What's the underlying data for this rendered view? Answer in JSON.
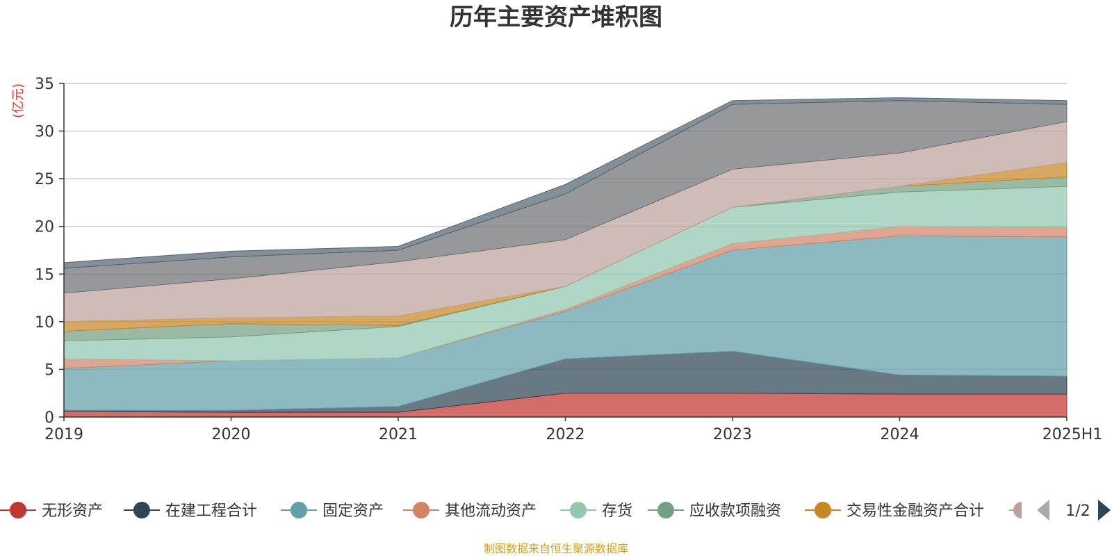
{
  "chart_data": {
    "type": "area",
    "title": "历年主要资产堆积图",
    "ylabel": "(亿元)",
    "xlabel": "",
    "ylim": [
      0,
      35
    ],
    "yticks": [
      0,
      5,
      10,
      15,
      20,
      25,
      30,
      35
    ],
    "grid": true,
    "legend_position": "bottom",
    "categories": [
      "2019",
      "2020",
      "2021",
      "2022",
      "2023",
      "2024",
      "2025H1"
    ],
    "series": [
      {
        "name": "无形资产",
        "color": "#c23531",
        "values": [
          0.6,
          0.5,
          0.5,
          2.5,
          2.5,
          2.4,
          2.4
        ]
      },
      {
        "name": "在建工程合计",
        "color": "#2f4554",
        "values": [
          0.1,
          0.2,
          0.6,
          3.6,
          4.4,
          2.0,
          1.9
        ]
      },
      {
        "name": "固定资产",
        "color": "#61a0a8",
        "values": [
          4.4,
          5.2,
          5.1,
          5.0,
          10.6,
          14.6,
          14.6
        ]
      },
      {
        "name": "其他流动资产",
        "color": "#d48265",
        "values": [
          1.0,
          0.0,
          0.0,
          0.2,
          0.7,
          1.0,
          1.0
        ]
      },
      {
        "name": "存货",
        "color": "#91c7ae",
        "values": [
          1.9,
          2.5,
          3.3,
          2.4,
          3.8,
          3.6,
          4.3
        ]
      },
      {
        "name": "应收款项融资",
        "color": "#749f83",
        "values": [
          1.0,
          1.4,
          0.1,
          0.0,
          0.0,
          0.6,
          1.0
        ]
      },
      {
        "name": "交易性金融资产合计",
        "color": "#ca8622",
        "values": [
          1.0,
          0.6,
          1.0,
          0.0,
          0.0,
          0.0,
          1.5
        ]
      },
      {
        "color": "#bda29a",
        "values": [
          3.0,
          4.1,
          5.7,
          4.9,
          4.0,
          3.5,
          4.3
        ]
      },
      {
        "color": "#6e7074",
        "values": [
          2.6,
          2.3,
          1.2,
          4.8,
          6.8,
          5.5,
          1.8
        ]
      },
      {
        "color": "#546570",
        "values": [
          0.6,
          0.6,
          0.4,
          1.0,
          0.4,
          0.3,
          0.4
        ]
      }
    ],
    "legend_page": "1/2",
    "footer_note": "制图数据来自恒生聚源数据库"
  }
}
